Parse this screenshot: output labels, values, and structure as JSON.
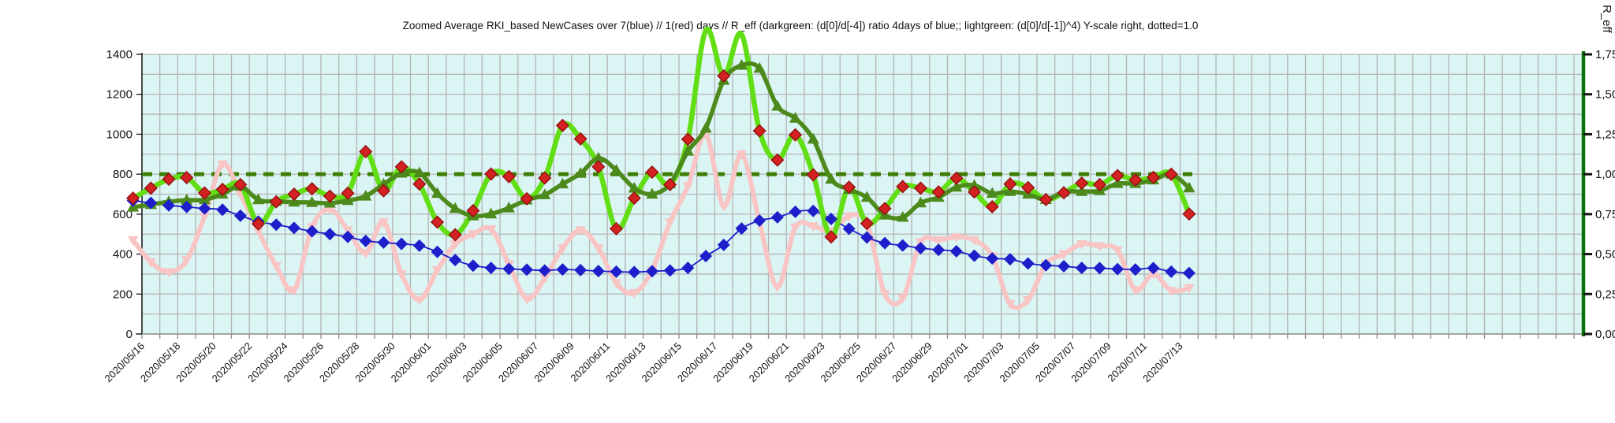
{
  "title": "Zoomed Average RKI_based NewCases over 7(blue) // 1(red) days //  R_eff (darkgreen: (d[0]/d[-4]) ratio 4days of blue;; lightgreen: (d[0]/d[-1])^4) Y-scale right, dotted=1.0",
  "colors": {
    "background": "#ffffff",
    "plot_wall": "#dbf5f5",
    "grid": "#b3b3b3",
    "left_axis": "#222222",
    "bottom_axis": "#8a8a8a",
    "right_axis_green": "#0a720a",
    "blue": "#1e1ecb",
    "pink": "#f8c4c4",
    "lightgreen": "#62de14",
    "darkgreen": "#4d8a1c",
    "red_marker": "#d42222",
    "red_marker_edge": "#971111",
    "dotted_line": "#3f7e04",
    "tick_text": "#111111"
  },
  "chart_data": {
    "type": "line",
    "title": "Zoomed Average RKI_based NewCases over 7(blue) // 1(red) days //  R_eff (darkgreen: (d[0]/d[-4]) ratio 4days of blue;; lightgreen: (d[0]/d[-1])^4) Y-scale right, dotted=1.0",
    "left_axis": {
      "range": [
        0,
        1400
      ],
      "tick_step_label": 200,
      "grid_step": 100,
      "tick_labels": [
        "0",
        "200",
        "400",
        "600",
        "800",
        "1000",
        "1200",
        "1400"
      ]
    },
    "right_axis": {
      "label": "R_eff",
      "range": [
        0,
        1.75
      ],
      "tick_labels": [
        "0,00",
        "0,25",
        "0,50",
        "0,75",
        "1,00",
        "1,25",
        "1,50",
        "1,75"
      ],
      "left_units_per_1": 800
    },
    "x_axis": {
      "days_shown": 80,
      "label_every_days": 2,
      "tick_labels": [
        "2020/05/16",
        "2020/05/18",
        "2020/05/20",
        "2020/05/22",
        "2020/05/24",
        "2020/05/26",
        "2020/05/28",
        "2020/05/30",
        "2020/06/01",
        "2020/06/03",
        "2020/06/05",
        "2020/06/07",
        "2020/06/09",
        "2020/06/11",
        "2020/06/13",
        "2020/06/15",
        "2020/06/17",
        "2020/06/19",
        "2020/06/21",
        "2020/06/23",
        "2020/06/25",
        "2020/06/27",
        "2020/06/29",
        "2020/07/01",
        "2020/07/03",
        "2020/07/05",
        "2020/07/07",
        "2020/07/09",
        "2020/07/11",
        "2020/07/13"
      ]
    },
    "reference_line": {
      "style": "dotted",
      "value_left_scale": 800,
      "value_right_scale": 1.0,
      "label": "dotted=1.0"
    },
    "dates": [
      "2020/05/15",
      "2020/05/16",
      "2020/05/17",
      "2020/05/18",
      "2020/05/19",
      "2020/05/20",
      "2020/05/21",
      "2020/05/22",
      "2020/05/23",
      "2020/05/24",
      "2020/05/25",
      "2020/05/26",
      "2020/05/27",
      "2020/05/28",
      "2020/05/29",
      "2020/05/30",
      "2020/05/31",
      "2020/06/01",
      "2020/06/02",
      "2020/06/03",
      "2020/06/04",
      "2020/06/05",
      "2020/06/06",
      "2020/06/07",
      "2020/06/08",
      "2020/06/09",
      "2020/06/10",
      "2020/06/11",
      "2020/06/12",
      "2020/06/13",
      "2020/06/14",
      "2020/06/15",
      "2020/06/16",
      "2020/06/17",
      "2020/06/18",
      "2020/06/19",
      "2020/06/20",
      "2020/06/21",
      "2020/06/22",
      "2020/06/23",
      "2020/06/24",
      "2020/06/25",
      "2020/06/26",
      "2020/06/27",
      "2020/06/28",
      "2020/06/29",
      "2020/06/30",
      "2020/07/01",
      "2020/07/02",
      "2020/07/03",
      "2020/07/04",
      "2020/07/05",
      "2020/07/06",
      "2020/07/07",
      "2020/07/08",
      "2020/07/09",
      "2020/07/10",
      "2020/07/11",
      "2020/07/12",
      "2020/07/13"
    ],
    "series": [
      {
        "name": "NewCases averaged over 7 days",
        "legend_hint": "7(blue)",
        "color_key": "blue",
        "marker": "diamond",
        "values": [
          668,
          656,
          644,
          636,
          628,
          622,
          592,
          563,
          547,
          531,
          514,
          500,
          486,
          466,
          458,
          451,
          442,
          411,
          370,
          342,
          331,
          326,
          322,
          318,
          323,
          320,
          315,
          312,
          310,
          314,
          318,
          331,
          390,
          446,
          528,
          568,
          584,
          612,
          616,
          576,
          527,
          483,
          455,
          443,
          430,
          421,
          414,
          392,
          378,
          374,
          353,
          344,
          339,
          331,
          330,
          325,
          323,
          330,
          312,
          305
        ]
      },
      {
        "name": "NewCases 1 day",
        "legend_hint": "1(red)",
        "color_key": "pink",
        "marker": "triangle-down",
        "values": [
          470,
          360,
          310,
          370,
          590,
          850,
          700,
          515,
          340,
          220,
          535,
          625,
          520,
          405,
          560,
          300,
          170,
          320,
          450,
          500,
          525,
          350,
          175,
          280,
          430,
          520,
          430,
          255,
          205,
          320,
          560,
          740,
          1000,
          640,
          900,
          560,
          235,
          535,
          540,
          515,
          590,
          555,
          200,
          180,
          460,
          470,
          485,
          470,
          390,
          150,
          170,
          350,
          400,
          450,
          440,
          420,
          220,
          300,
          217,
          230
        ]
      },
      {
        "name": "R_eff lightgreen (d[0]/d[-1])^4",
        "legend_hint": "lightgreen",
        "color_key": "lightgreen",
        "marker": "red-diamond",
        "axis": "right",
        "values": [
          680,
          730,
          775,
          783,
          706,
          724,
          748,
          551,
          662,
          700,
          727,
          690,
          705,
          913,
          717,
          837,
          751,
          560,
          497,
          617,
          801,
          788,
          677,
          781,
          1044,
          977,
          837,
          527,
          680,
          810,
          748,
          975,
          1520,
          1292,
          1500,
          1017,
          871,
          997,
          797,
          486,
          735,
          553,
          628,
          738,
          730,
          711,
          780,
          711,
          637,
          751,
          733,
          673,
          707,
          755,
          748,
          793,
          771,
          784,
          800,
          601
        ]
      },
      {
        "name": "R_eff darkgreen (d[0]/d[-4]) ratio 4days of blue",
        "legend_hint": "darkgreen",
        "color_key": "darkgreen",
        "marker": "triangle-up",
        "axis": "right",
        "values": [
          635,
          648,
          662,
          670,
          672,
          700,
          740,
          672,
          664,
          660,
          658,
          655,
          668,
          690,
          750,
          805,
          807,
          704,
          628,
          591,
          601,
          631,
          671,
          697,
          751,
          804,
          880,
          820,
          730,
          700,
          751,
          915,
          1030,
          1270,
          1345,
          1330,
          1140,
          1080,
          975,
          775,
          724,
          684,
          595,
          584,
          656,
          684,
          735,
          744,
          704,
          713,
          700,
          673,
          711,
          713,
          717,
          753,
          753,
          771,
          800,
          731
        ]
      }
    ]
  }
}
